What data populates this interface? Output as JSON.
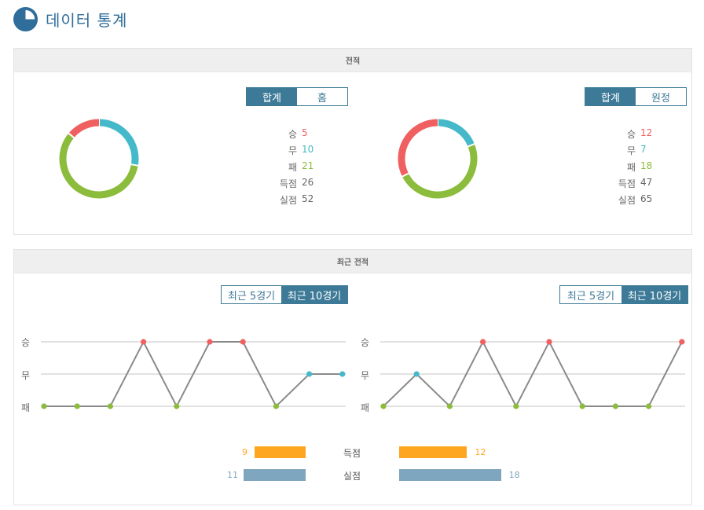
{
  "page": {
    "title": "데이터 통계",
    "icon": "pie-chart-icon"
  },
  "colors": {
    "win": "#f06060",
    "draw": "#45b9c9",
    "loss": "#8cbc3c",
    "accent": "#3d7a97",
    "goals_for": "#ffa620",
    "goals_against": "#7ea6bf",
    "line": "#8a8a8a",
    "grid": "#e2e2e2"
  },
  "record": {
    "title": "전적",
    "home": {
      "tabs": [
        {
          "label": "합계",
          "active": true
        },
        {
          "label": "홈",
          "active": false
        }
      ],
      "stats": [
        {
          "label": "승",
          "value": "5",
          "color": "#f06060"
        },
        {
          "label": "무",
          "value": "10",
          "color": "#45b9c9"
        },
        {
          "label": "패",
          "value": "21",
          "color": "#8cbc3c"
        },
        {
          "label": "득점",
          "value": "26",
          "color": "#666666"
        },
        {
          "label": "실점",
          "value": "52",
          "color": "#666666"
        }
      ]
    },
    "away": {
      "tabs": [
        {
          "label": "합계",
          "active": true
        },
        {
          "label": "원정",
          "active": false
        }
      ],
      "stats": [
        {
          "label": "승",
          "value": "12",
          "color": "#f06060"
        },
        {
          "label": "무",
          "value": "7",
          "color": "#45b9c9"
        },
        {
          "label": "패",
          "value": "18",
          "color": "#8cbc3c"
        },
        {
          "label": "득점",
          "value": "47",
          "color": "#666666"
        },
        {
          "label": "실점",
          "value": "65",
          "color": "#666666"
        }
      ]
    }
  },
  "recent": {
    "title": "최근 전적",
    "home": {
      "tabs": [
        {
          "label": "최근 5경기",
          "active": false
        },
        {
          "label": "최근 10경기",
          "active": true
        }
      ]
    },
    "away": {
      "tabs": [
        {
          "label": "최근 5경기",
          "active": false
        },
        {
          "label": "최근 10경기",
          "active": true
        }
      ]
    },
    "y_labels": [
      "승",
      "무",
      "패"
    ],
    "bars": {
      "goals_label": "득점",
      "against_label": "실점",
      "home_goals": "9",
      "away_goals": "12",
      "home_against": "11",
      "away_against": "18"
    }
  },
  "chart_data": [
    {
      "type": "pie",
      "categories": [
        "승",
        "무",
        "패"
      ],
      "values": [
        5,
        10,
        21
      ],
      "donut": true
    },
    {
      "type": "pie",
      "categories": [
        "승",
        "무",
        "패"
      ],
      "values": [
        12,
        7,
        18
      ],
      "donut": true
    },
    {
      "type": "line",
      "y_categories": [
        "패",
        "무",
        "승"
      ],
      "x": [
        1,
        2,
        3,
        4,
        5,
        6,
        7,
        8,
        9,
        10
      ],
      "values": [
        "패",
        "패",
        "패",
        "승",
        "패",
        "승",
        "승",
        "패",
        "무",
        "무"
      ]
    },
    {
      "type": "line",
      "y_categories": [
        "패",
        "무",
        "승"
      ],
      "x": [
        1,
        2,
        3,
        4,
        5,
        6,
        7,
        8,
        9,
        10
      ],
      "values": [
        "패",
        "무",
        "패",
        "승",
        "패",
        "승",
        "패",
        "패",
        "패",
        "승"
      ]
    },
    {
      "type": "bar",
      "categories": [
        "득점",
        "실점"
      ],
      "series": [
        {
          "values": [
            9,
            11
          ]
        },
        {
          "values": [
            12,
            18
          ]
        }
      ]
    }
  ]
}
